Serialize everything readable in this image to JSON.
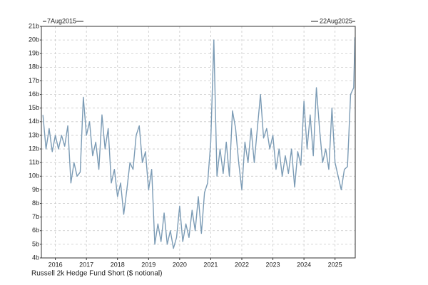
{
  "chart_data": {
    "type": "line",
    "start_label": "7Aug2015",
    "end_label": "22Aug2025",
    "x": [
      2015.6,
      2015.7,
      2015.8,
      2015.9,
      2016.0,
      2016.1,
      2016.2,
      2016.3,
      2016.4,
      2016.5,
      2016.6,
      2016.7,
      2016.8,
      2016.9,
      2017.0,
      2017.1,
      2017.2,
      2017.3,
      2017.4,
      2017.5,
      2017.6,
      2017.7,
      2017.8,
      2017.9,
      2018.0,
      2018.1,
      2018.2,
      2018.3,
      2018.4,
      2018.5,
      2018.6,
      2018.7,
      2018.8,
      2018.9,
      2019.0,
      2019.1,
      2019.2,
      2019.3,
      2019.4,
      2019.5,
      2019.6,
      2019.7,
      2019.8,
      2019.9,
      2020.0,
      2020.1,
      2020.2,
      2020.3,
      2020.4,
      2020.5,
      2020.6,
      2020.7,
      2020.8,
      2020.9,
      2021.0,
      2021.1,
      2021.2,
      2021.3,
      2021.4,
      2021.5,
      2021.6,
      2021.7,
      2021.8,
      2021.9,
      2022.0,
      2022.1,
      2022.2,
      2022.3,
      2022.4,
      2022.5,
      2022.6,
      2022.7,
      2022.8,
      2022.9,
      2023.0,
      2023.1,
      2023.2,
      2023.3,
      2023.4,
      2023.5,
      2023.6,
      2023.7,
      2023.8,
      2023.9,
      2024.0,
      2024.1,
      2024.2,
      2024.3,
      2024.4,
      2024.5,
      2024.6,
      2024.7,
      2024.8,
      2024.9,
      2025.0,
      2025.1,
      2025.2,
      2025.3,
      2025.4,
      2025.5,
      2025.6,
      2025.64
    ],
    "series": [
      {
        "name": "Russell 2k Hedge Fund Short ($ notional)",
        "color": "#7b9bb5",
        "values": [
          14.5,
          12,
          13.5,
          11.8,
          13,
          12,
          13,
          12.2,
          13.7,
          9.5,
          11,
          10,
          10.3,
          15.8,
          13,
          14,
          11.5,
          12.5,
          10.5,
          14.5,
          12,
          13.5,
          9.5,
          10.5,
          8.5,
          9.5,
          7.2,
          9,
          11,
          10.5,
          13,
          13.7,
          11,
          11.8,
          9,
          10.5,
          5,
          6.5,
          5.2,
          7.3,
          5,
          6,
          4.7,
          5.5,
          7.8,
          5.2,
          6.5,
          5.5,
          7.5,
          6,
          8.5,
          5.8,
          8.8,
          9.5,
          12.5,
          20,
          10,
          12,
          10.2,
          12.5,
          10,
          14.8,
          13.5,
          11,
          9,
          12.5,
          11,
          13.5,
          11,
          13.5,
          16,
          12.8,
          13.5,
          12,
          13,
          10.5,
          12,
          10,
          11.5,
          10.2,
          12,
          9.2,
          11.8,
          10.8,
          15.5,
          12,
          14.5,
          11.5,
          16.5,
          13.5,
          11,
          12,
          10.5,
          15,
          11,
          10,
          9,
          10.5,
          10.7,
          16,
          16.5,
          20.2
        ]
      }
    ],
    "xlim": [
      2015.55,
      2025.65
    ],
    "xticks": [
      2016,
      2017,
      2018,
      2019,
      2020,
      2021,
      2022,
      2023,
      2024,
      2025
    ],
    "ylim": [
      4,
      21
    ],
    "yticks": [
      {
        "value": 4,
        "label": "4b"
      },
      {
        "value": 5,
        "label": "5b"
      },
      {
        "value": 6,
        "label": "6b"
      },
      {
        "value": 7,
        "label": "7b"
      },
      {
        "value": 8,
        "label": "8b"
      },
      {
        "value": 9,
        "label": "9b"
      },
      {
        "value": 10,
        "label": "10b"
      },
      {
        "value": 11,
        "label": "11b"
      },
      {
        "value": 12,
        "label": "12b"
      },
      {
        "value": 13,
        "label": "13b"
      },
      {
        "value": 14,
        "label": "14b"
      },
      {
        "value": 15,
        "label": "15b"
      },
      {
        "value": 16,
        "label": "16b"
      },
      {
        "value": 17,
        "label": "17b"
      },
      {
        "value": 18,
        "label": "18b"
      },
      {
        "value": 19,
        "label": "19b"
      },
      {
        "value": 20,
        "label": "20b"
      },
      {
        "value": 21,
        "label": "21b"
      }
    ],
    "grid": true
  }
}
